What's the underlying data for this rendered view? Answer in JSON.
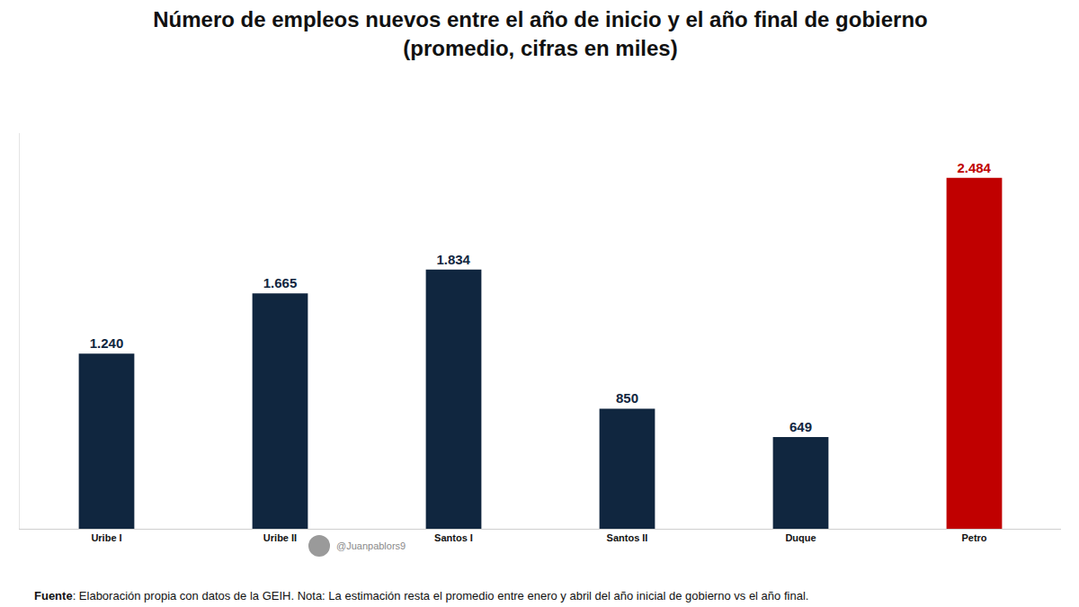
{
  "chart_data": {
    "type": "bar",
    "title": "Número de empleos nuevos entre el año de inicio y el año final de gobierno",
    "subtitle": "(promedio, cifras en miles)",
    "categories": [
      "Uribe I",
      "Uribe II",
      "Santos I",
      "Santos II",
      "Duque",
      "Petro"
    ],
    "values": [
      1240,
      1665,
      1834,
      850,
      649,
      2484
    ],
    "value_labels": [
      "1.240",
      "1.665",
      "1.834",
      "850",
      "649",
      "2.484"
    ],
    "colors": [
      "#10263f",
      "#10263f",
      "#10263f",
      "#10263f",
      "#10263f",
      "#c00000"
    ],
    "data_labels": true,
    "ylim": [
      0,
      2800
    ],
    "yticks": [],
    "grid": false,
    "tick_labels": "x",
    "annotations": [
      "@Juanpablors9"
    ],
    "source": "Fuente: Elaboración propia con datos de la GEIH. Nota: La estimación resta el promedio entre enero y abril del año inicial de gobierno vs el año final."
  }
}
